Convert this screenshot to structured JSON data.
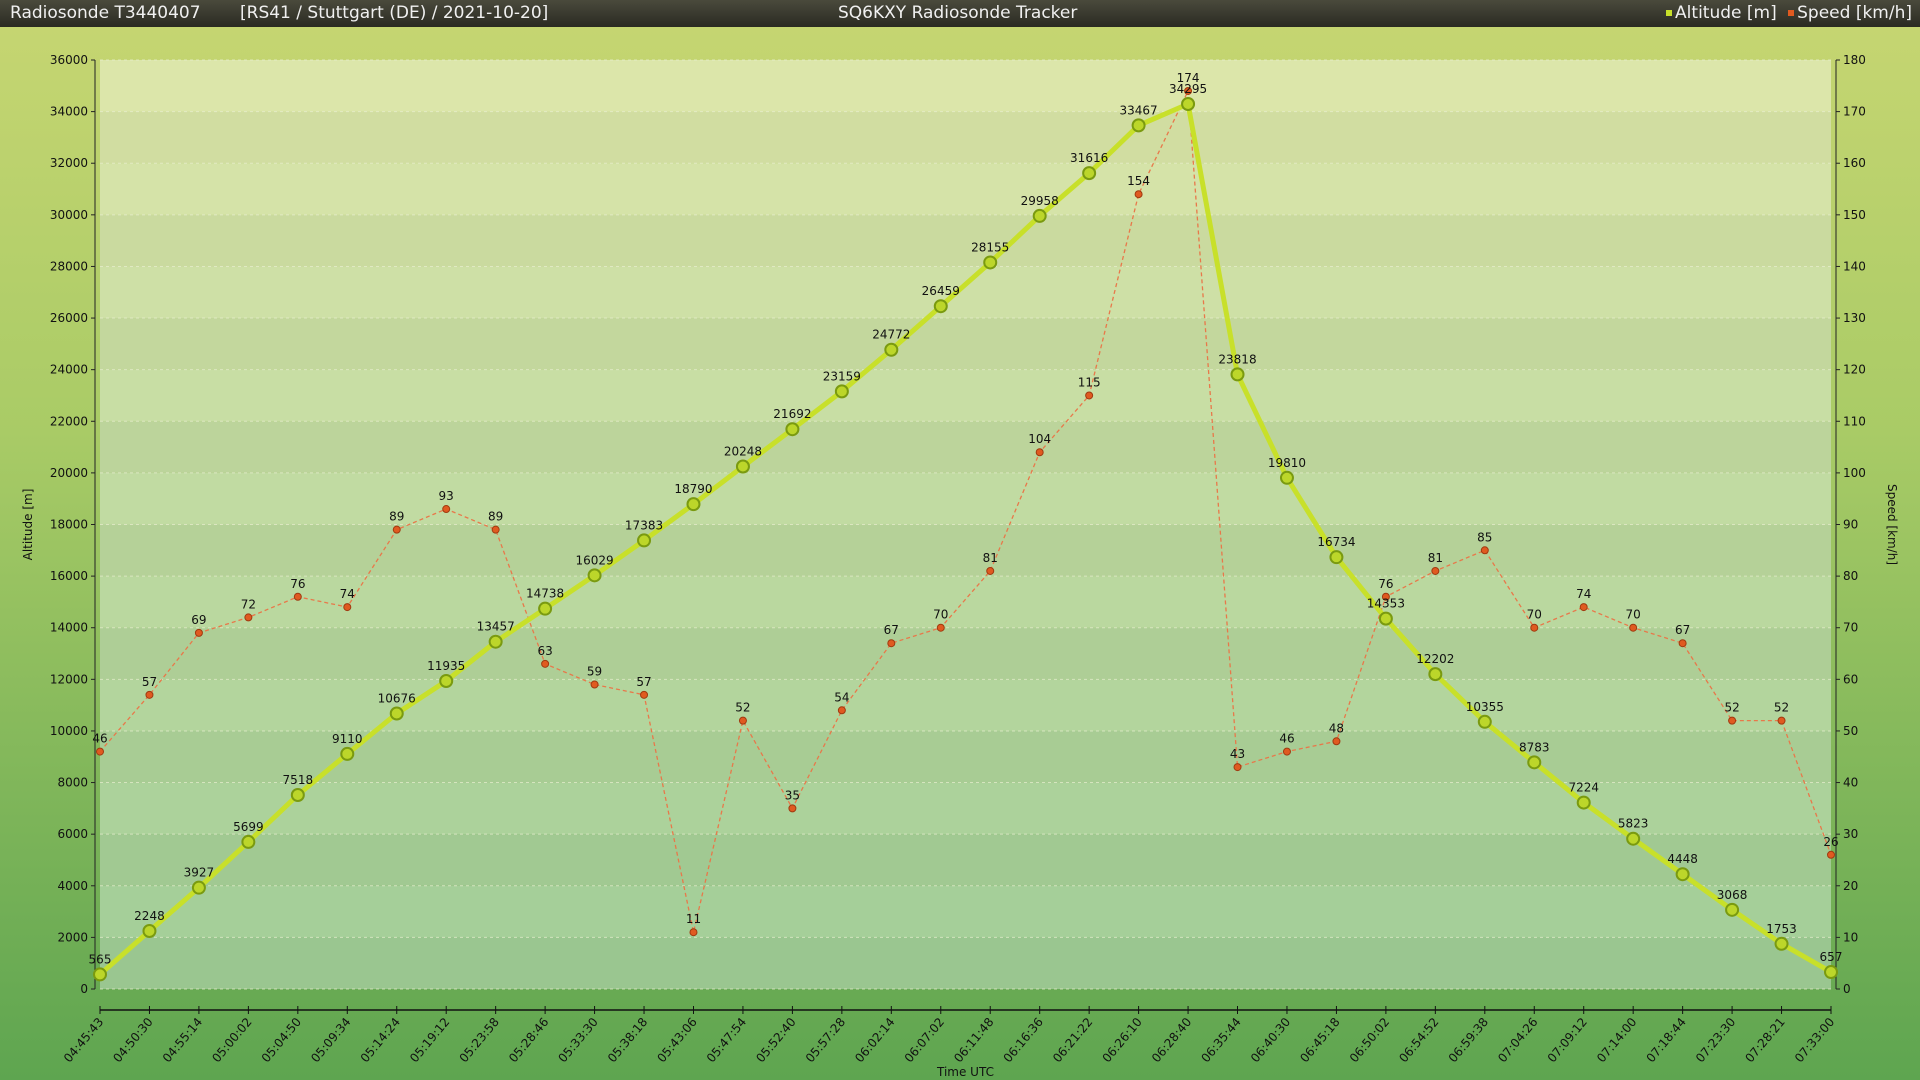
{
  "header": {
    "sonde": "Radiosonde T3440407",
    "info": "[RS41 / Stuttgart (DE) / 2021-10-20]",
    "app_title": "SQ6KXY Radiosonde Tracker",
    "legend": [
      {
        "label": "Altitude [m]",
        "color": "#c8e02a"
      },
      {
        "label": "Speed [km/h]",
        "color": "#e05a20"
      }
    ]
  },
  "chart_data": {
    "type": "line",
    "xlabel": "Time UTC",
    "ylabel": "Altitude [m]",
    "y2label": "Speed [km/h]",
    "ylim": [
      0,
      36000
    ],
    "y2lim": [
      0,
      180
    ],
    "grid": true,
    "legend": "top-right",
    "categories": [
      "04:45:43",
      "04:50:30",
      "04:55:14",
      "05:00:02",
      "05:04:50",
      "05:09:34",
      "05:14:24",
      "05:19:12",
      "05:23:58",
      "05:28:46",
      "05:33:30",
      "05:38:18",
      "05:43:06",
      "05:47:54",
      "05:52:40",
      "05:57:28",
      "06:02:14",
      "06:07:02",
      "06:11:48",
      "06:16:36",
      "06:21:22",
      "06:26:10",
      "06:28:40",
      "06:35:44",
      "06:40:30",
      "06:45:18",
      "06:50:02",
      "06:54:52",
      "06:59:38",
      "07:04:26",
      "07:09:12",
      "07:14:00",
      "07:18:44",
      "07:23:30",
      "07:28:21",
      "07:33:00"
    ],
    "series": [
      {
        "name": "Altitude [m]",
        "axis": "left",
        "color": "#c8e02a",
        "values": [
          565,
          2248,
          3927,
          5699,
          7518,
          9110,
          10676,
          11935,
          13457,
          14738,
          16029,
          17383,
          18790,
          20248,
          21692,
          23159,
          24772,
          26459,
          28155,
          29958,
          31616,
          33467,
          34295,
          23818,
          19810,
          16734,
          14353,
          12202,
          10355,
          8783,
          7224,
          5823,
          4448,
          3068,
          1753,
          657
        ]
      },
      {
        "name": "Speed [km/h]",
        "axis": "right",
        "color": "#e05a20",
        "values": [
          46,
          57,
          69,
          72,
          76,
          74,
          89,
          93,
          89,
          63,
          59,
          57,
          11,
          52,
          35,
          54,
          67,
          70,
          81,
          104,
          115,
          154,
          174,
          43,
          46,
          48,
          76,
          81,
          85,
          70,
          74,
          70,
          67,
          52,
          52,
          26
        ]
      }
    ],
    "yticks": [
      0,
      2000,
      4000,
      6000,
      8000,
      10000,
      12000,
      14000,
      16000,
      18000,
      20000,
      22000,
      24000,
      26000,
      28000,
      30000,
      32000,
      34000,
      36000
    ],
    "y2ticks": [
      0,
      10,
      20,
      30,
      40,
      50,
      60,
      70,
      80,
      90,
      100,
      110,
      120,
      130,
      140,
      150,
      160,
      170,
      180
    ]
  }
}
